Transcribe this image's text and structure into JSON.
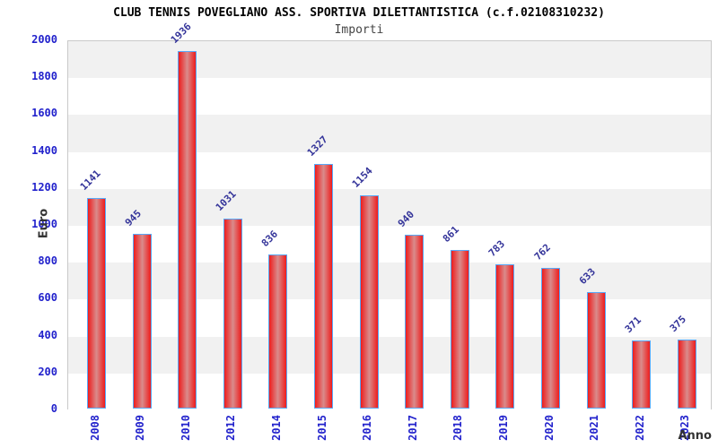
{
  "chart_data": {
    "type": "bar",
    "title": "CLUB TENNIS POVEGLIANO ASS. SPORTIVA DILETTANTISTICA (c.f.02108310232)",
    "subtitle": "Importi",
    "xlabel": "Anno",
    "ylabel": "Euro",
    "categories": [
      "2008",
      "2009",
      "2010",
      "2012",
      "2014",
      "2015",
      "2016",
      "2017",
      "2018",
      "2019",
      "2020",
      "2021",
      "2022",
      "2023"
    ],
    "values": [
      1141,
      945,
      1936,
      1031,
      836,
      1327,
      1154,
      940,
      861,
      783,
      762,
      633,
      371,
      375
    ],
    "ylim": [
      0,
      2000
    ],
    "ytick_step": 200,
    "yticks": [
      "0",
      "200",
      "400",
      "600",
      "800",
      "1000",
      "1200",
      "1400",
      "1600",
      "1800",
      "2000"
    ],
    "grid": true,
    "legend": "none",
    "band_fill": "alternating horizontal bands every 200 units, gray topmost",
    "colors": {
      "bar_fill_edge": "#ee1c1c",
      "bar_fill_center": "#d98c8c",
      "bar_border": "#58a8f8",
      "value_label": "#333399",
      "tick_label": "#2222cc",
      "band_gray": "#f1f1f1",
      "gridline": "#d9d9d9",
      "axis_title": "#333333",
      "title_color": "#000000",
      "subtitle_color": "#444444"
    }
  }
}
